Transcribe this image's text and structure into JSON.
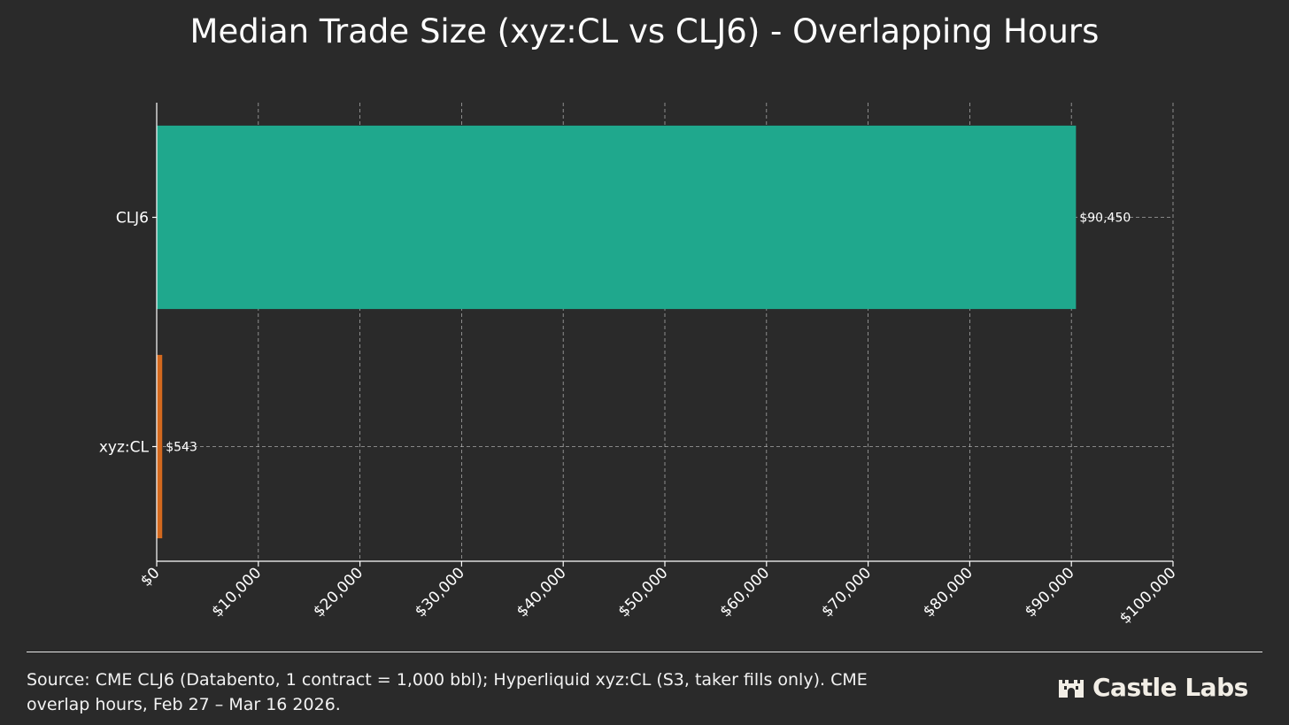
{
  "chart_data": {
    "type": "bar",
    "orientation": "horizontal",
    "title": "Median Trade Size (xyz:CL vs CLJ6) - Overlapping Hours",
    "xlabel": "",
    "ylabel": "",
    "xlim": [
      0,
      100000
    ],
    "grid": true,
    "x_ticks": [
      "$0",
      "$10,000",
      "$20,000",
      "$30,000",
      "$40,000",
      "$50,000",
      "$60,000",
      "$70,000",
      "$80,000",
      "$90,000",
      "$100,000"
    ],
    "x_tick_values": [
      0,
      10000,
      20000,
      30000,
      40000,
      50000,
      60000,
      70000,
      80000,
      90000,
      100000
    ],
    "categories": [
      "CLJ6",
      "xyz:CL"
    ],
    "values": [
      90450,
      543
    ],
    "value_labels": [
      "$90,450",
      "$543"
    ],
    "bar_colors": [
      "#1fa88d",
      "#d4691e"
    ]
  },
  "colors": {
    "background": "#2a2a2a",
    "text": "#ffffff",
    "grid": "#cfcfcf",
    "axis": "#ffffff"
  },
  "footer": {
    "source": "Source: CME CLJ6 (Databento, 1 contract = 1,000 bbl); Hyperliquid xyz:CL (S3, taker fills only). CME overlap hours, Feb 27 – Mar 16 2026."
  },
  "brand": {
    "name": "Castle Labs",
    "icon": "castle-icon"
  }
}
